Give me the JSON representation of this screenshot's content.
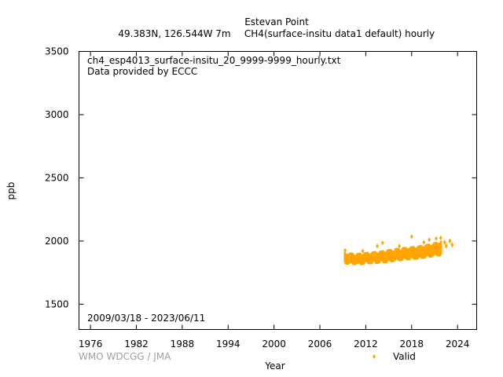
{
  "chart_data": {
    "type": "scatter",
    "title": "Estevan Point",
    "subtitle_location": "49.383N, 126.544W 7m",
    "subtitle_series": "CH4(surface-insitu data1 default) hourly",
    "xlabel": "Year",
    "ylabel": "ppb",
    "xlim": [
      1974.5,
      2026.5
    ],
    "ylim": [
      1300,
      3500
    ],
    "xticks": [
      1976,
      1982,
      1988,
      1994,
      2000,
      2006,
      2012,
      2018,
      2024
    ],
    "yticks": [
      1500,
      2000,
      2500,
      3000,
      3500
    ],
    "grid": false,
    "legend_position": "bottom-right",
    "annotations": {
      "file_name": "ch4_esp4013_surface-insitu_20_9999-9999_hourly.txt",
      "provider": "Data provided by ECCC",
      "date_range": "2009/03/18 - 2023/06/11",
      "credit": "WMO WDCGG / JMA"
    },
    "series": [
      {
        "name": "Valid",
        "color": "#ffa500",
        "marker": "diamond",
        "band_x": [
          2009.2,
          2010.0,
          2011.0,
          2012.0,
          2013.0,
          2014.0,
          2015.0,
          2016.0,
          2017.0,
          2018.0,
          2019.0,
          2020.0,
          2021.0,
          2021.9
        ],
        "band_low": [
          1815,
          1812,
          1808,
          1815,
          1818,
          1822,
          1828,
          1838,
          1845,
          1850,
          1855,
          1865,
          1875,
          1882
        ],
        "band_high": [
          1915,
          1908,
          1905,
          1912,
          1918,
          1925,
          1935,
          1945,
          1952,
          1958,
          1965,
          1975,
          1990,
          2005
        ],
        "spikes_x": [
          2009.3,
          2011.6,
          2013.5,
          2014.2,
          2016.4,
          2018.0,
          2019.6,
          2020.3,
          2021.2,
          2021.8
        ],
        "spikes_y": [
          1925,
          1920,
          1960,
          1985,
          1960,
          2035,
          1990,
          2010,
          2020,
          2025
        ],
        "points_x": [
          2022.3,
          2022.5,
          2023.0,
          2023.3
        ],
        "points_y": [
          1990,
          1960,
          2000,
          1970
        ]
      }
    ]
  }
}
